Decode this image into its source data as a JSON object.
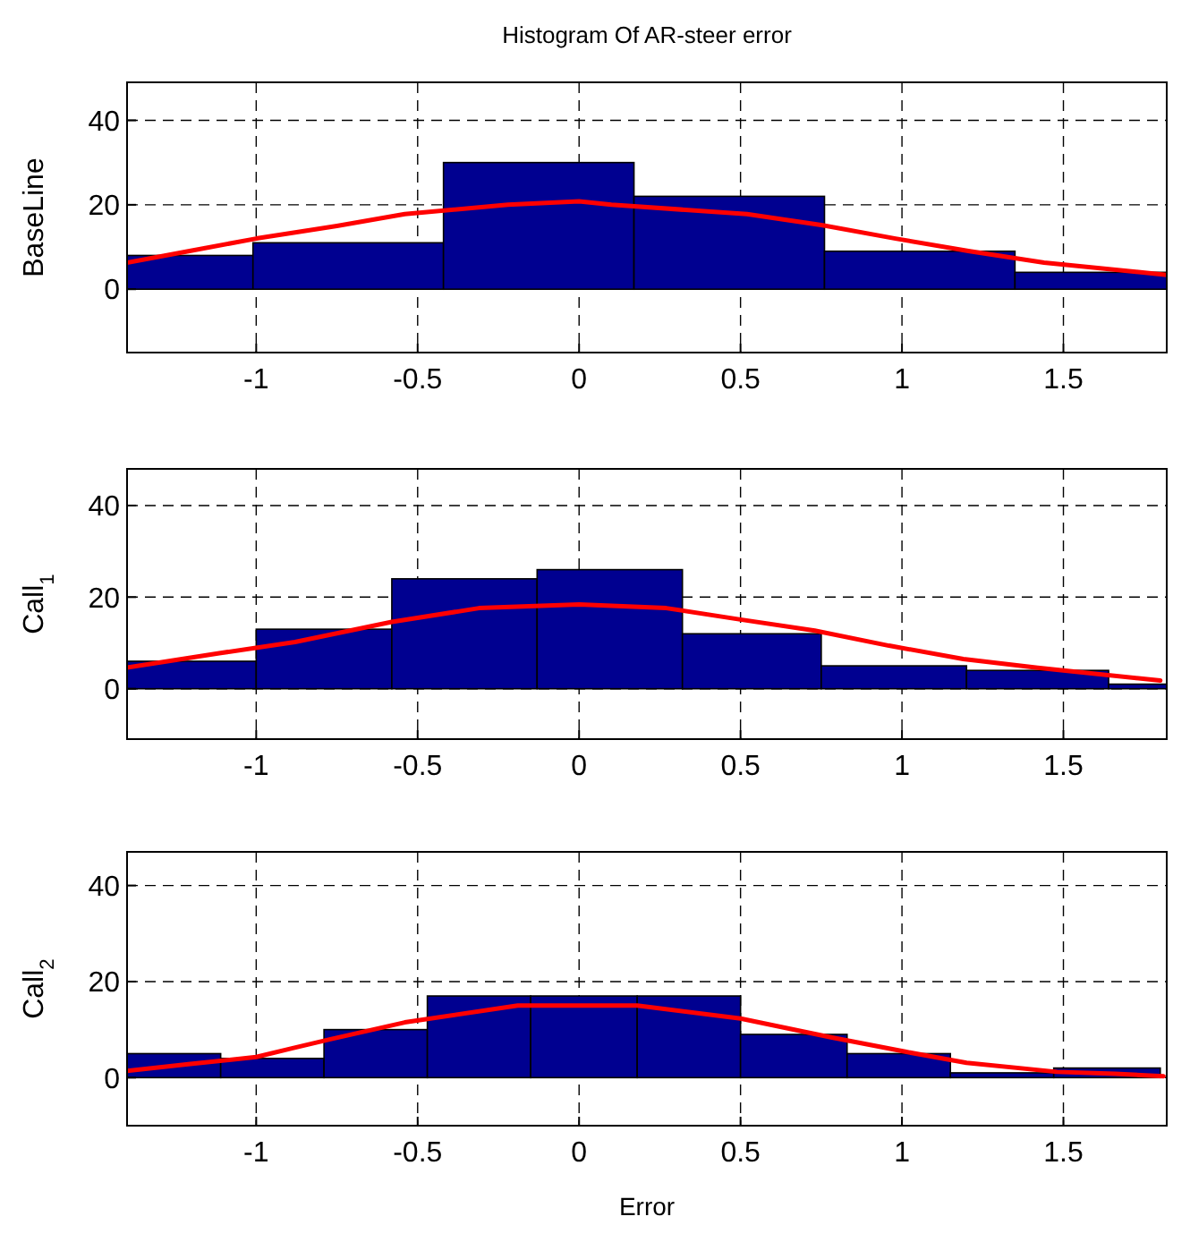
{
  "chart_data": [
    {
      "type": "histogram",
      "title": "Histogram Of AR-steer error",
      "ylabel": "BaseLine",
      "bins": [
        -1.4,
        -1.01,
        -0.42,
        0.17,
        0.76,
        1.35,
        1.82
      ],
      "xlim": [
        -1.4,
        1.82
      ],
      "ylim": [
        -15,
        49
      ],
      "xticks": [
        -1,
        -0.5,
        0,
        0.5,
        1,
        1.5
      ],
      "yticks": [
        0,
        20,
        40
      ],
      "grid": true,
      "series": [
        {
          "color": "#000090",
          "values": [
            8,
            11,
            30,
            22,
            9,
            4
          ]
        },
        {
          "type": "line",
          "color": "#ff0000",
          "x": [
            -1.4,
            -1.21,
            -1.0,
            -0.75,
            -0.54,
            -0.22,
            0,
            0.1,
            0.52,
            0.75,
            0.98,
            1.21,
            1.44,
            1.82
          ],
          "values": [
            6.3,
            9,
            12,
            15,
            17.8,
            20,
            20.8,
            20,
            17.8,
            15.2,
            12,
            9,
            6.3,
            3.4
          ]
        }
      ]
    },
    {
      "type": "histogram",
      "ylabel": "Call$_{1}$",
      "bins": [
        -1.4,
        -1.0,
        -0.58,
        -0.13,
        0.32,
        0.75,
        1.2,
        1.64,
        1.82
      ],
      "xlim": [
        -1.4,
        1.82
      ],
      "ylim": [
        -11,
        48
      ],
      "xticks": [
        -1,
        -0.5,
        0,
        0.5,
        1,
        1.5
      ],
      "yticks": [
        0,
        20,
        40
      ],
      "grid": true,
      "series": [
        {
          "color": "#000090",
          "values": [
            6,
            13,
            24,
            26,
            12,
            5,
            4,
            1
          ]
        },
        {
          "type": "line",
          "color": "#ff0000",
          "x": [
            -1.4,
            -1.11,
            -0.88,
            -0.58,
            -0.31,
            0,
            0.27,
            0.5,
            0.73,
            0.96,
            1.19,
            1.42,
            1.8
          ],
          "values": [
            4.6,
            7.8,
            10.2,
            14.6,
            17.6,
            18.4,
            17.6,
            15.1,
            12.7,
            9.4,
            6.5,
            4.6,
            1.8
          ]
        }
      ]
    },
    {
      "type": "histogram",
      "ylabel": "Call$_{2}$",
      "xlabel": "Error",
      "bins": [
        -1.4,
        -1.11,
        -0.79,
        -0.47,
        -0.15,
        0.18,
        0.5,
        0.83,
        1.15,
        1.47,
        1.8
      ],
      "xlim": [
        -1.4,
        1.82
      ],
      "ylim": [
        -10,
        47
      ],
      "xticks": [
        -1,
        -0.5,
        0,
        0.5,
        1,
        1.5
      ],
      "yticks": [
        0,
        20,
        40
      ],
      "grid": true,
      "series": [
        {
          "color": "#000090",
          "values": [
            5,
            4,
            10,
            17,
            17,
            17,
            9,
            5,
            1,
            2
          ]
        },
        {
          "type": "line",
          "color": "#ff0000",
          "x": [
            -1.4,
            -1.21,
            -1.0,
            -0.89,
            -0.77,
            -0.54,
            -0.19,
            0.18,
            0.5,
            0.78,
            1.01,
            1.2,
            1.48,
            1.66,
            1.81
          ],
          "values": [
            1.4,
            2.8,
            4.3,
            6.1,
            8,
            11.5,
            15,
            15,
            12.3,
            8.4,
            5.4,
            3.1,
            1.2,
            0.8,
            0.3
          ]
        }
      ]
    }
  ]
}
